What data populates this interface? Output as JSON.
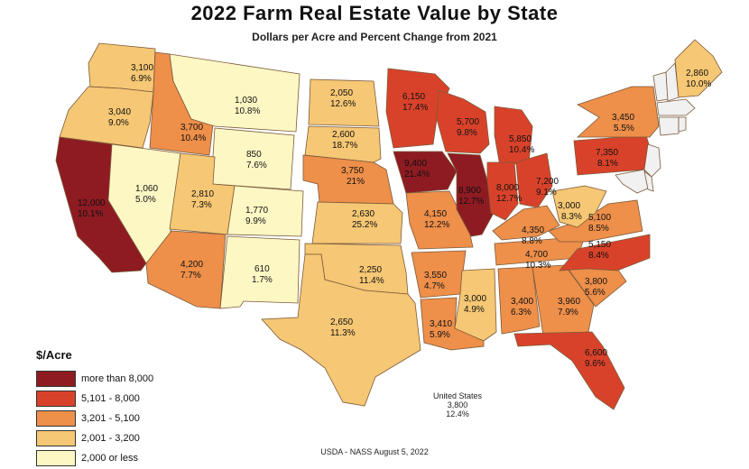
{
  "title": "2022 Farm Real Estate Value by State",
  "subtitle": "Dollars per Acre and Percent Change from 2021",
  "legend": {
    "title": "$/Acre",
    "items": [
      {
        "label": "more than 8,000",
        "color": "#8e1b22"
      },
      {
        "label": "5,101 - 8,000",
        "color": "#d9422a"
      },
      {
        "label": "3,201 - 5,100",
        "color": "#ee8f4a"
      },
      {
        "label": "2,001 - 3,200",
        "color": "#f6c774"
      },
      {
        "label": "2,000 or less",
        "color": "#fdf7c4"
      }
    ]
  },
  "us_note": {
    "line1": "United States",
    "line2": "3,800",
    "line3": "12.4%"
  },
  "source": "USDA - NASS August 5, 2022",
  "states": [
    {
      "id": "WA",
      "value": "3,100",
      "change": "6.9%",
      "cls": 3
    },
    {
      "id": "OR",
      "value": "3,040",
      "change": "9.0%",
      "cls": 3
    },
    {
      "id": "CA",
      "value": "12,000",
      "change": "10.1%",
      "cls": 0
    },
    {
      "id": "ID",
      "value": "3,700",
      "change": "10.4%",
      "cls": 2
    },
    {
      "id": "NV",
      "value": "1,060",
      "change": "5.0%",
      "cls": 4
    },
    {
      "id": "MT",
      "value": "1,030",
      "change": "10.8%",
      "cls": 4
    },
    {
      "id": "WY",
      "value": "850",
      "change": "7.6%",
      "cls": 4
    },
    {
      "id": "UT",
      "value": "2,810",
      "change": "7.3%",
      "cls": 3
    },
    {
      "id": "AZ",
      "value": "4,200",
      "change": "7.7%",
      "cls": 2
    },
    {
      "id": "CO",
      "value": "1,770",
      "change": "9.9%",
      "cls": 4
    },
    {
      "id": "NM",
      "value": "610",
      "change": "1.7%",
      "cls": 4
    },
    {
      "id": "ND",
      "value": "2,050",
      "change": "12.6%",
      "cls": 3
    },
    {
      "id": "SD",
      "value": "2,600",
      "change": "18.7%",
      "cls": 3
    },
    {
      "id": "NE",
      "value": "3,750",
      "change": "21%",
      "cls": 2
    },
    {
      "id": "KS",
      "value": "2,630",
      "change": "25.2%",
      "cls": 3
    },
    {
      "id": "OK",
      "value": "2,250",
      "change": "11.4%",
      "cls": 3
    },
    {
      "id": "TX",
      "value": "2,650",
      "change": "11.3%",
      "cls": 3
    },
    {
      "id": "MN",
      "value": "6,150",
      "change": "17.4%",
      "cls": 1
    },
    {
      "id": "IA",
      "value": "9,400",
      "change": "21.4%",
      "cls": 0
    },
    {
      "id": "MO",
      "value": "4,150",
      "change": "12.2%",
      "cls": 2
    },
    {
      "id": "AR",
      "value": "3,550",
      "change": "4.7%",
      "cls": 2
    },
    {
      "id": "LA",
      "value": "3,410",
      "change": "5.9%",
      "cls": 2
    },
    {
      "id": "WI",
      "value": "5,700",
      "change": "9.8%",
      "cls": 1
    },
    {
      "id": "IL",
      "value": "8,900",
      "change": "12.7%",
      "cls": 0
    },
    {
      "id": "MS",
      "value": "3,000",
      "change": "4.9%",
      "cls": 3
    },
    {
      "id": "MI",
      "value": "5,850",
      "change": "10.4%",
      "cls": 1
    },
    {
      "id": "IN",
      "value": "8,000",
      "change": "12.7%",
      "cls": 1
    },
    {
      "id": "OH",
      "value": "7,200",
      "change": "9.1%",
      "cls": 1
    },
    {
      "id": "KY",
      "value": "4,350",
      "change": "8.8%",
      "cls": 2
    },
    {
      "id": "TN",
      "value": "4,700",
      "change": "10.3%",
      "cls": 2
    },
    {
      "id": "AL",
      "value": "3,400",
      "change": "6.3%",
      "cls": 2
    },
    {
      "id": "GA",
      "value": "3,960",
      "change": "7.9%",
      "cls": 2
    },
    {
      "id": "FL",
      "value": "6,600",
      "change": "9.6%",
      "cls": 1
    },
    {
      "id": "SC",
      "value": "3,800",
      "change": "5.6%",
      "cls": 2
    },
    {
      "id": "NC",
      "value": "5,150",
      "change": "8.4%",
      "cls": 1
    },
    {
      "id": "VA",
      "value": "5,100",
      "change": "8.5%",
      "cls": 2
    },
    {
      "id": "WV",
      "value": "3,000",
      "change": "8.3%",
      "cls": 3
    },
    {
      "id": "PA",
      "value": "7,350",
      "change": "8.1%",
      "cls": 1
    },
    {
      "id": "NY",
      "value": "3,450",
      "change": "5.5%",
      "cls": 2
    },
    {
      "id": "ME",
      "value": "2,860",
      "change": "10.0%",
      "cls": 3
    }
  ]
}
